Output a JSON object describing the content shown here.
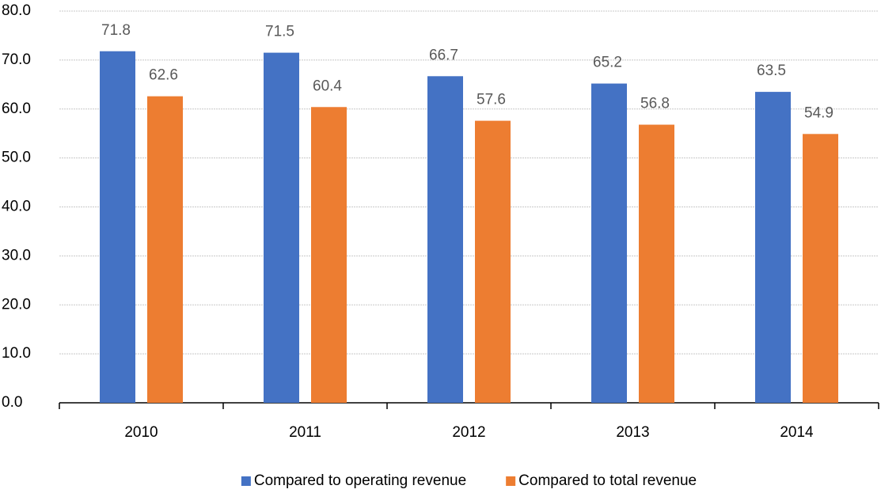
{
  "chart_data": {
    "type": "bar",
    "categories": [
      "2010",
      "2011",
      "2012",
      "2013",
      "2014"
    ],
    "series": [
      {
        "name": "Compared to operating revenue",
        "color": "#4472c4",
        "values": [
          71.8,
          71.5,
          66.7,
          65.2,
          63.5
        ]
      },
      {
        "name": "Compared to total revenue",
        "color": "#ed7d31",
        "values": [
          62.6,
          60.4,
          57.6,
          56.8,
          54.9
        ]
      }
    ],
    "ylim": [
      0,
      80
    ],
    "yticks": [
      {
        "value": 0,
        "label": "0.0"
      },
      {
        "value": 10,
        "label": "10.0"
      },
      {
        "value": 20,
        "label": "20.0"
      },
      {
        "value": 30,
        "label": "30.0"
      },
      {
        "value": 40,
        "label": "40.0"
      },
      {
        "value": 50,
        "label": "50.0"
      },
      {
        "value": 60,
        "label": "60.0"
      },
      {
        "value": 70,
        "label": "70.0"
      },
      {
        "value": 80,
        "label": "80.0"
      }
    ],
    "grid": true,
    "legend": "bottom"
  }
}
